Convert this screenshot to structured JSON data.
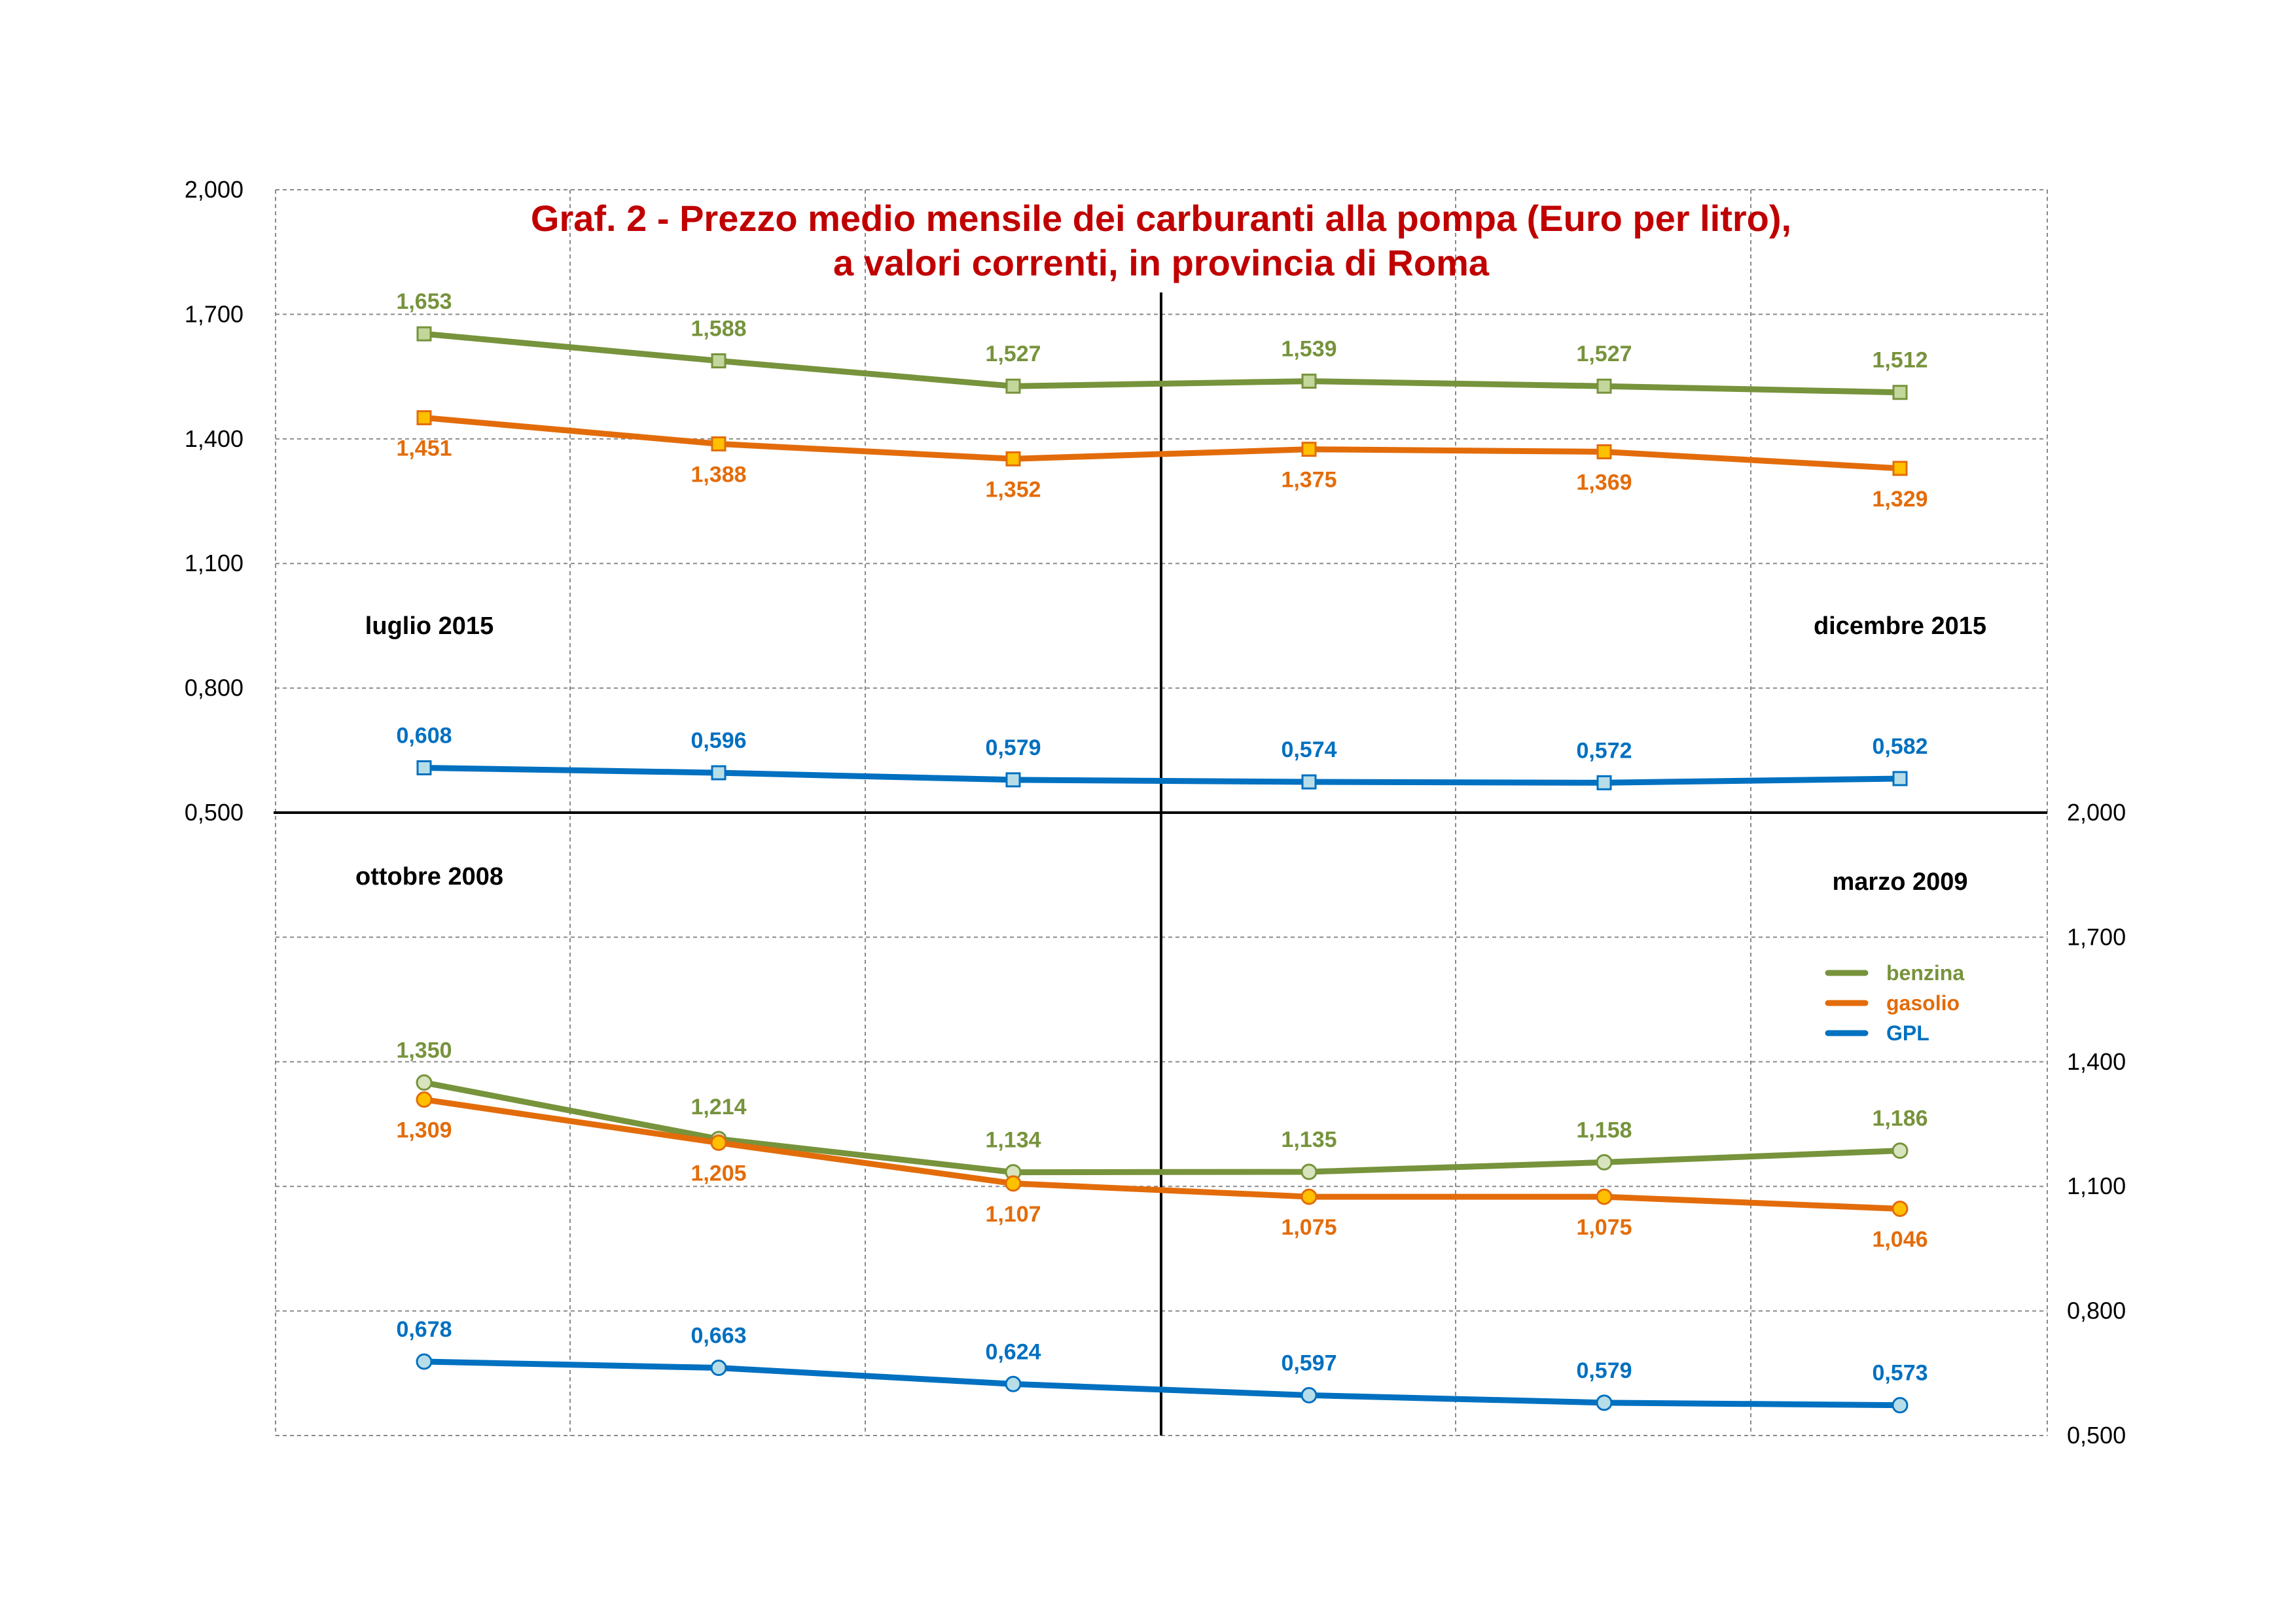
{
  "chart_data": {
    "type": "line",
    "title": "Graf. 2 - Prezzo medio mensile dei carburanti alla pompa (Euro per litro),",
    "subtitle": "a valori correnti, in provincia di Roma",
    "grid": true,
    "legend_position": "right, inside lower panel",
    "colors": {
      "benzina": "#77933c",
      "gasolio": "#e36c0a",
      "GPL": "#0070c0",
      "title": "#c00000"
    },
    "legend": [
      {
        "name": "benzina",
        "color": "#77933c"
      },
      {
        "name": "gasolio",
        "color": "#e36c0a"
      },
      {
        "name": "GPL",
        "color": "#0070c0"
      }
    ],
    "left_axis": {
      "ticks": [
        "0,500",
        "0,800",
        "1,100",
        "1,400",
        "1,700",
        "2,000"
      ],
      "range": [
        0.5,
        2.0
      ]
    },
    "right_axis": {
      "ticks": [
        "0,500",
        "0,800",
        "1,100",
        "1,400",
        "1,700",
        "2,000"
      ],
      "range": [
        0.5,
        2.0
      ]
    },
    "panels": [
      {
        "name": "upper",
        "axis": "left",
        "start_label": "luglio 2015",
        "end_label": "dicembre 2015",
        "marker": "square",
        "series": [
          {
            "name": "benzina",
            "values": [
              1.653,
              1.588,
              1.527,
              1.539,
              1.527,
              1.512
            ],
            "labels": [
              "1,653",
              "1,588",
              "1,527",
              "1,539",
              "1,527",
              "1,512"
            ]
          },
          {
            "name": "gasolio",
            "values": [
              1.451,
              1.388,
              1.352,
              1.375,
              1.369,
              1.329
            ],
            "labels": [
              "1,451",
              "1,388",
              "1,352",
              "1,375",
              "1,369",
              "1,329"
            ]
          },
          {
            "name": "GPL",
            "values": [
              0.608,
              0.596,
              0.579,
              0.574,
              0.572,
              0.582
            ],
            "labels": [
              "0,608",
              "0,596",
              "0,579",
              "0,574",
              "0,572",
              "0,582"
            ]
          }
        ]
      },
      {
        "name": "lower",
        "axis": "right",
        "start_label": "ottobre 2008",
        "end_label": "marzo 2009",
        "marker": "circle",
        "series": [
          {
            "name": "benzina",
            "values": [
              1.35,
              1.214,
              1.134,
              1.135,
              1.158,
              1.186
            ],
            "labels": [
              "1,350",
              "1,214",
              "1,134",
              "1,135",
              "1,158",
              "1,186"
            ]
          },
          {
            "name": "gasolio",
            "values": [
              1.309,
              1.205,
              1.107,
              1.075,
              1.075,
              1.046
            ],
            "labels": [
              "1,309",
              "1,205",
              "1,107",
              "1,075",
              "1,075",
              "1,046"
            ]
          },
          {
            "name": "GPL",
            "values": [
              0.678,
              0.663,
              0.624,
              0.597,
              0.579,
              0.573
            ],
            "labels": [
              "0,678",
              "0,663",
              "0,624",
              "0,597",
              "0,579",
              "0,573"
            ]
          }
        ]
      }
    ]
  }
}
